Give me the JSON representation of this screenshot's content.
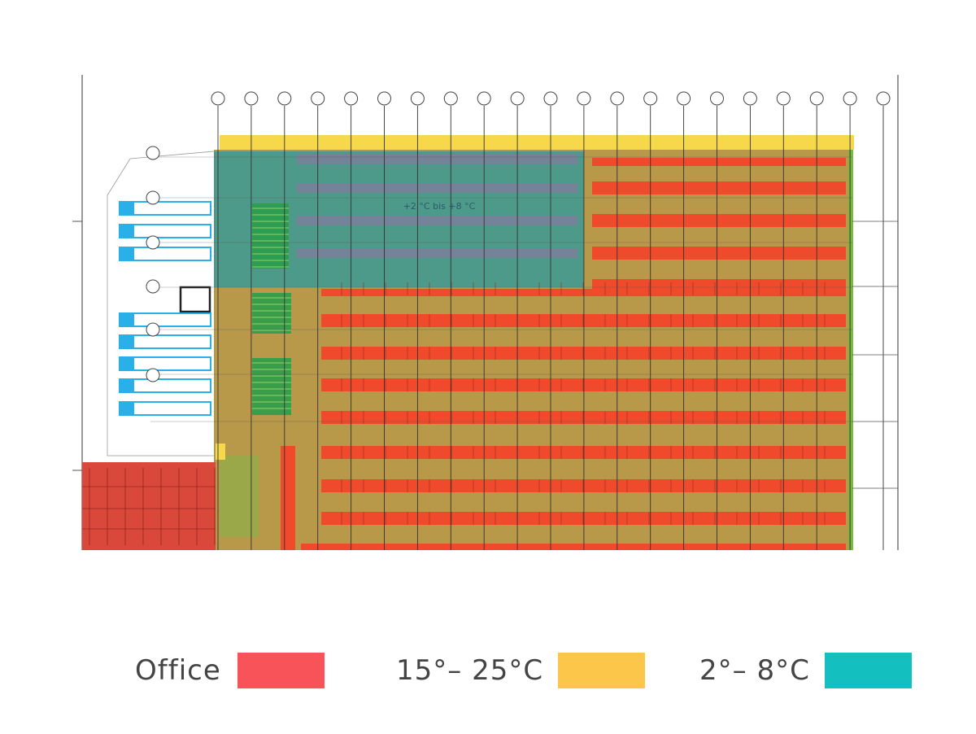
{
  "zone_label": "+2 °C bis +8 °C",
  "legend": [
    {
      "label": "Office",
      "color": "#f9535a"
    },
    {
      "label": "15°– 25°C",
      "color": "#fcc64a"
    },
    {
      "label": "2°– 8°C",
      "color": "#13bfbf"
    }
  ],
  "colors": {
    "ambient_floor": "#b8994a",
    "cold_zone": "#4e9a8a",
    "rack": "#ef4a2c",
    "rack_cold": "#7c7f9a",
    "office": "#d9483a",
    "yellow_band": "#f6d84a",
    "green_rack": "#2a9e4a",
    "dock_blue": "#2ab0e8",
    "line": "#333333"
  },
  "grid_axes_count": 21,
  "dock_doors_count": 10
}
